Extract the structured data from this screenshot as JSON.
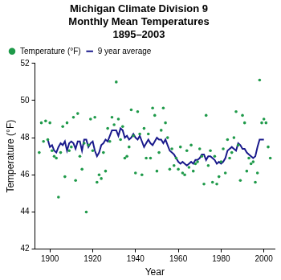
{
  "chart_data": {
    "type": "scatter",
    "title": [
      "Michigan Climate Division 9",
      "Monthly Mean Temperatures",
      "1895–2003"
    ],
    "x_label": "Year",
    "y_label": "Temperature (°F)",
    "x": [
      1895,
      1896,
      1897,
      1898,
      1899,
      1900,
      1901,
      1902,
      1903,
      1904,
      1905,
      1906,
      1907,
      1908,
      1909,
      1910,
      1911,
      1912,
      1913,
      1914,
      1915,
      1916,
      1917,
      1918,
      1919,
      1920,
      1921,
      1922,
      1923,
      1924,
      1925,
      1926,
      1927,
      1928,
      1929,
      1930,
      1931,
      1932,
      1933,
      1934,
      1935,
      1936,
      1937,
      1938,
      1939,
      1940,
      1941,
      1942,
      1943,
      1944,
      1945,
      1946,
      1947,
      1948,
      1949,
      1950,
      1951,
      1952,
      1953,
      1954,
      1955,
      1956,
      1957,
      1958,
      1959,
      1960,
      1961,
      1962,
      1963,
      1964,
      1965,
      1966,
      1967,
      1968,
      1969,
      1970,
      1971,
      1972,
      1973,
      1974,
      1975,
      1976,
      1977,
      1978,
      1979,
      1980,
      1981,
      1982,
      1983,
      1984,
      1985,
      1986,
      1987,
      1988,
      1989,
      1990,
      1991,
      1992,
      1993,
      1994,
      1995,
      1996,
      1997,
      1998,
      1999,
      2000,
      2001,
      2002,
      2003
    ],
    "series": [
      {
        "name": "Temperature (°F)",
        "color": "#1f9a4a",
        "marker": "circle",
        "values": [
          47.2,
          48.8,
          47.8,
          48.9,
          47.9,
          48.8,
          47.3,
          47.0,
          46.9,
          44.8,
          47.2,
          48.6,
          45.9,
          48.8,
          47.3,
          47.5,
          49.1,
          45.7,
          49.3,
          47.0,
          46.3,
          47.7,
          44.0,
          47.6,
          49.0,
          47.3,
          49.1,
          45.6,
          46.0,
          45.8,
          47.2,
          46.2,
          48.5,
          47.8,
          49.1,
          48.7,
          51.0,
          49.0,
          47.9,
          48.6,
          46.9,
          47.0,
          47.5,
          49.5,
          48.1,
          46.1,
          49.4,
          48.2,
          46.0,
          48.5,
          46.9,
          48.2,
          46.9,
          49.6,
          49.2,
          46.2,
          47.2,
          48.4,
          49.6,
          48.8,
          48.0,
          46.3,
          47.4,
          46.5,
          46.9,
          46.3,
          47.5,
          46.1,
          46.0,
          47.3,
          46.4,
          47.6,
          46.2,
          46.6,
          46.7,
          47.4,
          47.0,
          45.5,
          49.2,
          46.5,
          47.3,
          45.6,
          47.0,
          45.5,
          45.9,
          46.7,
          47.4,
          46.1,
          47.9,
          46.9,
          47.2,
          48.0,
          49.4,
          47.6,
          45.7,
          49.2,
          48.8,
          46.2,
          46.9,
          46.6,
          46.7,
          45.6,
          46.1,
          51.1,
          48.8,
          49.0,
          48.8,
          47.5,
          46.9
        ]
      },
      {
        "name": "9 year average",
        "color": "#1a1a8c",
        "type": "line",
        "line_style": "solid",
        "values": [
          null,
          null,
          null,
          null,
          47.9,
          47.5,
          47.6,
          47.3,
          47.2,
          47.5,
          47.7,
          47.6,
          47.8,
          47.3,
          47.7,
          47.8,
          47.7,
          47.4,
          47.8,
          47.8,
          47.3,
          47.9,
          47.9,
          47.5,
          47.7,
          47.8,
          47.3,
          47.0,
          47.2,
          47.6,
          47.7,
          47.9,
          47.8,
          48.1,
          48.4,
          48.4,
          48.4,
          48.1,
          48.5,
          48.4,
          48.0,
          48.1,
          47.9,
          48.0,
          48.2,
          48.0,
          47.9,
          48.1,
          47.8,
          47.5,
          47.7,
          47.9,
          47.7,
          47.6,
          47.8,
          48.0,
          47.9,
          47.9,
          47.7,
          47.9,
          47.6,
          47.3,
          47.2,
          47.1,
          46.9,
          46.7,
          46.6,
          46.7,
          46.6,
          46.5,
          46.6,
          46.7,
          46.6,
          46.8,
          46.8,
          46.9,
          47.1,
          47.1,
          46.8,
          47.0,
          47.0,
          46.9,
          46.8,
          46.6,
          46.7,
          46.6,
          46.7,
          46.9,
          47.3,
          47.4,
          47.5,
          47.4,
          47.3,
          47.7,
          47.6,
          47.4,
          47.4,
          47.2,
          47.1,
          47.0,
          46.9,
          47.0,
          47.5,
          47.9,
          47.9,
          47.9,
          null,
          null,
          null
        ]
      }
    ],
    "xlim": [
      1893,
      2005
    ],
    "xticks": [
      1900,
      1920,
      1940,
      1960,
      1980,
      2000
    ],
    "ylim": [
      42,
      52
    ],
    "yticks": [
      42,
      44,
      46,
      48,
      50,
      52
    ],
    "grid": false,
    "legend": "top-left"
  }
}
